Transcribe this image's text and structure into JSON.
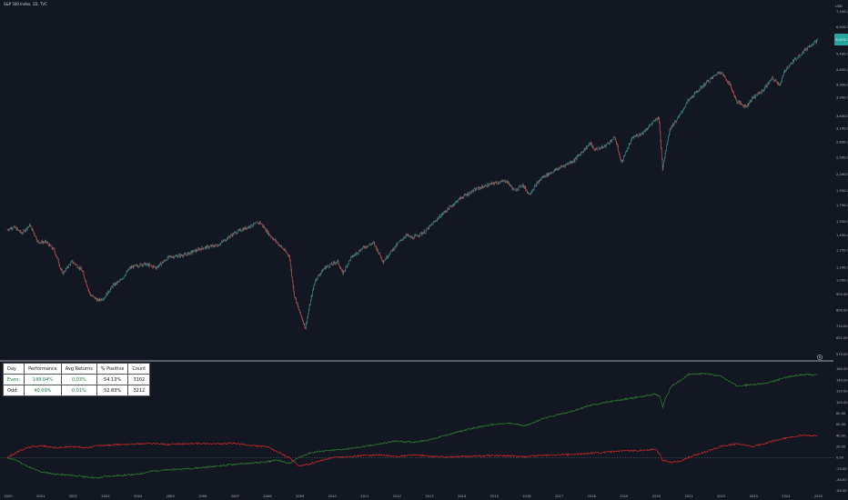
{
  "title": "S&P 500 Index, 1D, TVC",
  "currency": "USD",
  "price_badge": "5,975.38",
  "colors": {
    "background": "#131722",
    "up": "#26a69a",
    "down": "#ef5350",
    "even_line": "#2e7d32",
    "odd_line": "#c62828",
    "badge": "#26a69a",
    "axis_text": "#b2b5be"
  },
  "table": {
    "headers": [
      "Day",
      "Performance",
      "Avg Returns",
      "% Positive",
      "Count"
    ],
    "rows": [
      {
        "day": "Even:",
        "performance": "149.04%",
        "avg_returns": "0.03%",
        "pct_positive": "54.13%",
        "count": "3102"
      },
      {
        "day": "Odd:",
        "performance": "40.09%",
        "avg_returns": "0.01%",
        "pct_positive": "52.83%",
        "count": "3212"
      }
    ]
  },
  "chart_data": [
    {
      "type": "line",
      "name": "price",
      "x": [
        2000.0,
        2000.2,
        2000.45,
        2000.7,
        2000.95,
        2001.2,
        2001.45,
        2001.7,
        2002.0,
        2002.3,
        2002.55,
        2002.8,
        2003.0,
        2003.25,
        2003.5,
        2003.8,
        2004.2,
        2004.6,
        2005.0,
        2005.5,
        2006.0,
        2006.5,
        2007.0,
        2007.5,
        2007.8,
        2008.1,
        2008.4,
        2008.7,
        2008.85,
        2009.0,
        2009.2,
        2009.5,
        2009.8,
        2010.2,
        2010.35,
        2010.6,
        2011.0,
        2011.3,
        2011.6,
        2011.9,
        2012.3,
        2012.5,
        2012.9,
        2013.4,
        2014.0,
        2014.5,
        2015.0,
        2015.4,
        2015.65,
        2015.9,
        2016.1,
        2016.5,
        2017.0,
        2017.5,
        2018.0,
        2018.1,
        2018.4,
        2018.75,
        2018.95,
        2019.3,
        2019.6,
        2020.0,
        2020.1,
        2020.22,
        2020.45,
        2020.7,
        2021.0,
        2021.5,
        2022.0,
        2022.3,
        2022.5,
        2022.8,
        2023.0,
        2023.3,
        2023.6,
        2023.85,
        2024.0,
        2024.4,
        2024.8,
        2025.0
      ],
      "y": [
        1460,
        1490,
        1420,
        1510,
        1330,
        1330,
        1250,
        1050,
        1150,
        1080,
        900,
        860,
        880,
        960,
        1000,
        1100,
        1130,
        1100,
        1190,
        1210,
        1270,
        1300,
        1420,
        1500,
        1540,
        1400,
        1300,
        1200,
        900,
        800,
        700,
        1000,
        1100,
        1150,
        1050,
        1180,
        1280,
        1320,
        1150,
        1260,
        1400,
        1370,
        1440,
        1630,
        1850,
        1980,
        2060,
        2100,
        1950,
        2040,
        1900,
        2150,
        2300,
        2450,
        2780,
        2650,
        2700,
        2900,
        2400,
        2900,
        3000,
        3300,
        3380,
        2300,
        3100,
        3350,
        3800,
        4300,
        4750,
        4300,
        3800,
        3650,
        3900,
        4100,
        4500,
        4300,
        4800,
        5300,
        5800,
        5975
      ],
      "ylim": [
        575,
        7450
      ],
      "y_ticks": [
        "7,400.00",
        "6,600.00",
        "6,000.00",
        "5,400.00",
        "4,800.00",
        "4,300.00",
        "3,900.00",
        "3,400.00",
        "3,100.00",
        "2,800.00",
        "2,500.00",
        "2,200.00",
        "1,950.00",
        "1,750.00",
        "1,550.00",
        "1,400.00",
        "1,250.00",
        "1,100.00",
        "1,000.00",
        "900.00",
        "800.00",
        "710.00",
        "651.00",
        "575.00"
      ],
      "y_tick_values": [
        7400,
        6600,
        6000,
        5400,
        4800,
        4300,
        3900,
        3400,
        3100,
        2800,
        2500,
        2200,
        1950,
        1750,
        1550,
        1400,
        1250,
        1100,
        1000,
        900,
        800,
        710,
        651,
        575
      ]
    },
    {
      "type": "line",
      "name": "returns",
      "x": [
        2000.0,
        2000.3,
        2000.6,
        2001.0,
        2001.5,
        2002.0,
        2002.5,
        2002.8,
        2003.0,
        2003.5,
        2004.0,
        2004.5,
        2005.0,
        2005.5,
        2006.0,
        2006.5,
        2007.0,
        2007.5,
        2008.0,
        2008.3,
        2008.7,
        2009.0,
        2009.3,
        2009.7,
        2010.0,
        2010.5,
        2011.0,
        2011.5,
        2012.0,
        2012.5,
        2013.0,
        2013.5,
        2014.0,
        2014.5,
        2015.0,
        2015.5,
        2016.0,
        2016.5,
        2017.0,
        2017.5,
        2018.0,
        2018.5,
        2019.0,
        2019.5,
        2020.0,
        2020.15,
        2020.22,
        2020.3,
        2020.5,
        2020.8,
        2021.0,
        2021.5,
        2022.0,
        2022.5,
        2023.0,
        2023.5,
        2024.0,
        2024.5,
        2025.0
      ],
      "series": [
        {
          "name": "Even",
          "values": [
            0,
            -5,
            -15,
            -25,
            -30,
            -32,
            -35,
            -37,
            -34,
            -32,
            -30,
            -24,
            -22,
            -20,
            -18,
            -15,
            -12,
            -10,
            -8,
            -4,
            -10,
            0,
            8,
            12,
            13,
            16,
            20,
            25,
            30,
            28,
            32,
            40,
            48,
            55,
            60,
            62,
            58,
            70,
            78,
            85,
            95,
            100,
            105,
            110,
            115,
            110,
            90,
            105,
            130,
            140,
            150,
            152,
            148,
            130,
            132,
            135,
            145,
            150,
            150
          ]
        },
        {
          "name": "Odd",
          "values": [
            0,
            10,
            18,
            22,
            18,
            20,
            18,
            22,
            22,
            24,
            25,
            26,
            24,
            25,
            26,
            25,
            26,
            22,
            20,
            12,
            0,
            -15,
            -12,
            -5,
            0,
            2,
            4,
            5,
            2,
            5,
            3,
            1,
            2,
            3,
            4,
            3,
            2,
            4,
            5,
            6,
            8,
            10,
            12,
            13,
            15,
            5,
            -5,
            -5,
            -8,
            -6,
            0,
            10,
            20,
            25,
            20,
            28,
            35,
            40,
            40
          ]
        }
      ],
      "ylim": [
        -60,
        165
      ],
      "y_ticks": [
        "160.00",
        "140.00",
        "120.00",
        "100.00",
        "80.00",
        "60.00",
        "40.00",
        "20.00",
        "0.00",
        "-20.00",
        "-40.00",
        "-60.00"
      ],
      "y_tick_values": [
        160,
        140,
        120,
        100,
        80,
        60,
        40,
        20,
        0,
        -20,
        -40,
        -60
      ]
    }
  ],
  "x_axis": {
    "labels": [
      "2000",
      "2001",
      "2002",
      "2003",
      "2004",
      "2005",
      "2006",
      "2007",
      "2008",
      "2009",
      "2010",
      "2011",
      "2012",
      "2013",
      "2014",
      "2015",
      "2016",
      "2017",
      "2018",
      "2019",
      "2020",
      "2021",
      "2022",
      "2023",
      "2024",
      "2025"
    ],
    "values": [
      2000,
      2001,
      2002,
      2003,
      2004,
      2005,
      2006,
      2007,
      2008,
      2009,
      2010,
      2011,
      2012,
      2013,
      2014,
      2015,
      2016,
      2017,
      2018,
      2019,
      2020,
      2021,
      2022,
      2023,
      2024,
      2025
    ]
  }
}
